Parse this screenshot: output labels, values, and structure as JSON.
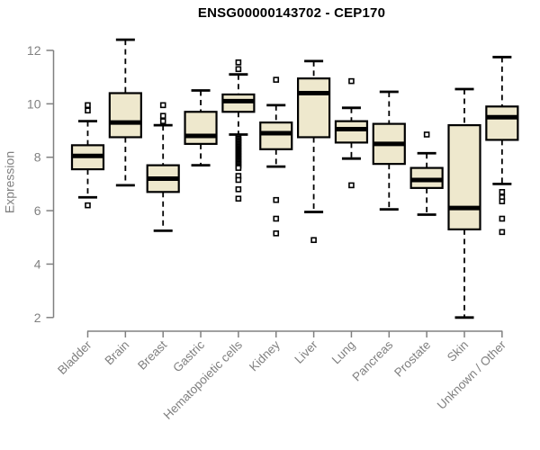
{
  "chart_data": {
    "type": "boxplot",
    "title": "ENSG00000143702 - CEP170",
    "xlabel": "",
    "ylabel": "Expression",
    "ylim": [
      2,
      12.5
    ],
    "yticks": [
      2,
      4,
      6,
      8,
      10,
      12
    ],
    "grid": false,
    "legend": "none",
    "categories": [
      "Bladder",
      "Brain",
      "Breast",
      "Gastric",
      "Hematopoietic cells",
      "Kidney",
      "Liver",
      "Lung",
      "Pancreas",
      "Prostate",
      "Skin",
      "Unknown / Other"
    ],
    "boxes": [
      {
        "label": "Bladder",
        "low": 6.5,
        "q1": 7.55,
        "median": 8.05,
        "q3": 8.45,
        "high": 9.35,
        "outliers": [
          9.95,
          9.75,
          6.2
        ]
      },
      {
        "label": "Brain",
        "low": 6.95,
        "q1": 8.75,
        "median": 9.3,
        "q3": 10.4,
        "high": 12.4,
        "outliers": []
      },
      {
        "label": "Breast",
        "low": 5.25,
        "q1": 6.7,
        "median": 7.2,
        "q3": 7.7,
        "high": 9.2,
        "outliers": [
          9.95,
          9.55,
          9.35
        ]
      },
      {
        "label": "Gastric",
        "low": 7.7,
        "q1": 8.5,
        "median": 8.8,
        "q3": 9.7,
        "high": 10.5,
        "outliers": []
      },
      {
        "label": "Hematopoietic cells",
        "low": 8.85,
        "q1": 9.7,
        "median": 10.1,
        "q3": 10.35,
        "high": 11.1,
        "outliers": [
          11.55,
          11.3,
          8.75,
          8.7,
          8.65,
          8.6,
          8.55,
          8.5,
          8.45,
          8.4,
          8.35,
          8.3,
          8.25,
          8.2,
          8.15,
          8.1,
          8.05,
          8.0,
          7.95,
          7.9,
          7.85,
          7.8,
          7.75,
          7.7,
          7.65,
          7.6,
          7.3,
          7.15,
          6.8,
          6.45
        ]
      },
      {
        "label": "Kidney",
        "low": 7.65,
        "q1": 8.3,
        "median": 8.9,
        "q3": 9.3,
        "high": 9.95,
        "outliers": [
          10.9,
          6.4,
          5.7,
          5.15
        ]
      },
      {
        "label": "Liver",
        "low": 5.95,
        "q1": 8.75,
        "median": 10.4,
        "q3": 10.95,
        "high": 11.6,
        "outliers": [
          4.9
        ]
      },
      {
        "label": "Lung",
        "low": 7.95,
        "q1": 8.55,
        "median": 9.05,
        "q3": 9.35,
        "high": 9.85,
        "outliers": [
          10.85,
          6.95
        ]
      },
      {
        "label": "Pancreas",
        "low": 6.05,
        "q1": 7.75,
        "median": 8.5,
        "q3": 9.25,
        "high": 10.45,
        "outliers": []
      },
      {
        "label": "Prostate",
        "low": 5.85,
        "q1": 6.85,
        "median": 7.15,
        "q3": 7.6,
        "high": 8.15,
        "outliers": [
          8.85
        ]
      },
      {
        "label": "Skin",
        "low": 2.0,
        "q1": 5.3,
        "median": 6.1,
        "q3": 9.2,
        "high": 10.55,
        "outliers": []
      },
      {
        "label": "Unknown / Other",
        "low": 7.0,
        "q1": 8.65,
        "median": 9.5,
        "q3": 9.9,
        "high": 11.75,
        "outliers": [
          6.7,
          6.5,
          6.35,
          5.7,
          5.2
        ]
      }
    ],
    "colors": {
      "box_fill": "#EEE8CD",
      "box_line": "#000000",
      "axis": "#808080",
      "tick_label": "#808080",
      "title": "#000000",
      "background": "#ffffff"
    }
  }
}
